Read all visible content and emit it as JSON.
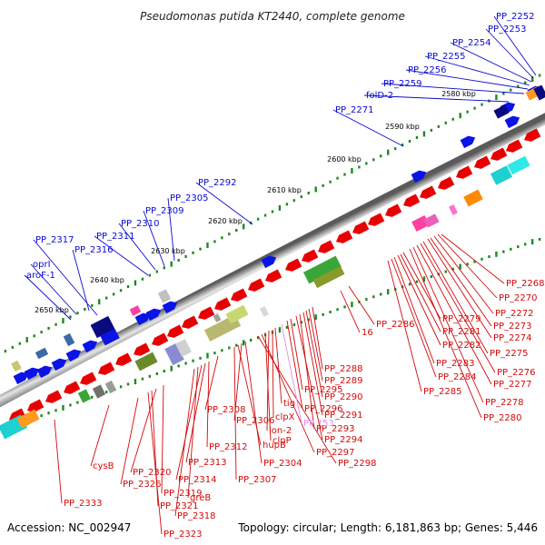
{
  "title": "Pseudomonas putida KT2440, complete genome",
  "footer": {
    "accession": "Accession: NC_002947",
    "summary": "Topology: circular; Length: 6,181,863 bp; Genes: 5,446"
  },
  "colors": {
    "forward_label": "#0a0ad2",
    "reverse_label": "#d20a0a",
    "pseudo_label": "#e58ae5",
    "tick_green": "#1d8a1d",
    "backbone": "#8a8a8a"
  },
  "ticks": [
    "2580 kbp",
    "2590 kbp",
    "2600 kbp",
    "2610 kbp",
    "2620 kbp",
    "2630 kbp",
    "2640 kbp",
    "2650 kbp"
  ],
  "labels_forward": [
    "PP_2252",
    "PP_2253",
    "PP_2254",
    "PP_2255",
    "PP_2256",
    "PP_2259",
    "folD-2",
    "PP_2271",
    "PP_2292",
    "PP_2305",
    "PP_2309",
    "PP_2310",
    "PP_2311",
    "PP_2317",
    "PP_2316",
    "oprI",
    "aroF-1"
  ],
  "labels_reverse": [
    "PP_2268",
    "PP_2270",
    "PP_2272",
    "PP_2273",
    "PP_2274",
    "PP_2275",
    "PP_2276",
    "PP_2277",
    "PP_2278",
    "PP_2280",
    "PP_2279",
    "PP_2281",
    "PP_2282",
    "PP_2283",
    "PP_2284",
    "PP_2285",
    "PP_2286",
    "16",
    "PP_2288",
    "PP_2289",
    "PP_2290",
    "PP_2291",
    "PP_2293",
    "PP_2294",
    "PP_2295",
    "PP_2296",
    "tig",
    "clpX",
    "lon-2",
    "clpP",
    "PP_2297",
    "PP_2298",
    "PP_2304",
    "PP_2306",
    "hupB",
    "PP_2307",
    "PP_2308",
    "PP_2312",
    "PP_2313",
    "PP_2314",
    "greB",
    "PP_2318",
    "PP_2319",
    "PP_2320",
    "PP_2321",
    "PP_2323",
    "PP_2326",
    "cysB",
    "PP_2333"
  ],
  "labels_pseudo": [
    "PP_t53"
  ]
}
